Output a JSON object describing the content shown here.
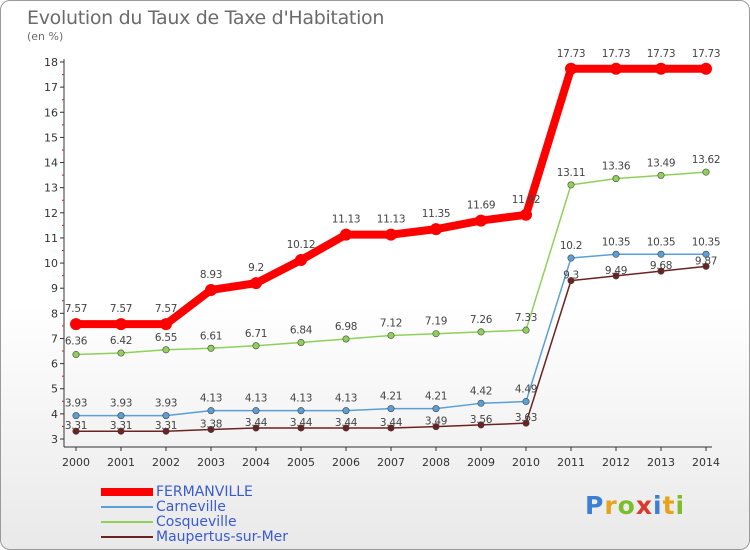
{
  "title": "Evolution du Taux de Taxe d'Habitation",
  "subtitle": "(en %)",
  "logo": {
    "letters": [
      "P",
      "r",
      "o",
      "x",
      "i",
      "t",
      "i"
    ],
    "colors": [
      "#3b7fd4",
      "#e8a21b",
      "#7dbd2b",
      "#d93a2b",
      "#3b7fd4",
      "#e8a21b",
      "#7dbd2b"
    ]
  },
  "chart_data": {
    "type": "line",
    "title": "Evolution du Taux de Taxe d'Habitation",
    "ylabel": "(en %)",
    "xlabel": "",
    "x": [
      "2000",
      "2001",
      "2002",
      "2003",
      "2004",
      "2005",
      "2006",
      "2007",
      "2008",
      "2009",
      "2010",
      "2011",
      "2012",
      "2013",
      "2014"
    ],
    "ylim": [
      3,
      18
    ],
    "yticks": [
      "3",
      "4",
      "5",
      "6",
      "7",
      "8",
      "9",
      "10",
      "11",
      "12",
      "13",
      "14",
      "15",
      "16",
      "17",
      "18"
    ],
    "grid": false,
    "legend_position": "bottom-left",
    "series": [
      {
        "name": "FERMANVILLE",
        "color": "#ff0000",
        "values": [
          7.57,
          7.57,
          7.57,
          8.93,
          9.2,
          10.12,
          11.13,
          11.13,
          11.35,
          11.69,
          11.92,
          17.73,
          17.73,
          17.73,
          17.73
        ],
        "labels": [
          "7.57",
          "7.57",
          "7.57",
          "8.93",
          "9.2",
          "10.12",
          "11.13",
          "11.13",
          "11.35",
          "11.69",
          "11.92",
          "17.73",
          "17.73",
          "17.73",
          "17.73"
        ]
      },
      {
        "name": "Carneville",
        "color": "#5a9fd6",
        "values": [
          3.93,
          3.93,
          3.93,
          4.13,
          4.13,
          4.13,
          4.13,
          4.21,
          4.21,
          4.42,
          4.49,
          10.2,
          10.35,
          10.35,
          10.35
        ],
        "labels": [
          "3.93",
          "3.93",
          "3.93",
          "4.13",
          "4.13",
          "4.13",
          "4.13",
          "4.21",
          "4.21",
          "4.42",
          "4.49",
          "10.2",
          "10.35",
          "10.35",
          "10.35"
        ]
      },
      {
        "name": "Cosqueville",
        "color": "#8fd05a",
        "values": [
          6.36,
          6.42,
          6.55,
          6.61,
          6.71,
          6.84,
          6.98,
          7.12,
          7.19,
          7.26,
          7.33,
          13.11,
          13.36,
          13.49,
          13.62
        ],
        "labels": [
          "6.36",
          "6.42",
          "6.55",
          "6.61",
          "6.71",
          "6.84",
          "6.98",
          "7.12",
          "7.19",
          "7.26",
          "7.33",
          "13.11",
          "13.36",
          "13.49",
          "13.62"
        ]
      },
      {
        "name": "Maupertus-sur-Mer",
        "color": "#6b2222",
        "values": [
          3.31,
          3.31,
          3.31,
          3.38,
          3.44,
          3.44,
          3.44,
          3.44,
          3.49,
          3.56,
          3.63,
          9.3,
          9.49,
          9.68,
          9.87
        ],
        "labels": [
          "3.31",
          "3.31",
          "3.31",
          "3.38",
          "3.44",
          "3.44",
          "3.44",
          "3.44",
          "3.49",
          "3.56",
          "3.63",
          "9.3",
          "9.49",
          "9.68",
          "9.87"
        ]
      }
    ]
  }
}
